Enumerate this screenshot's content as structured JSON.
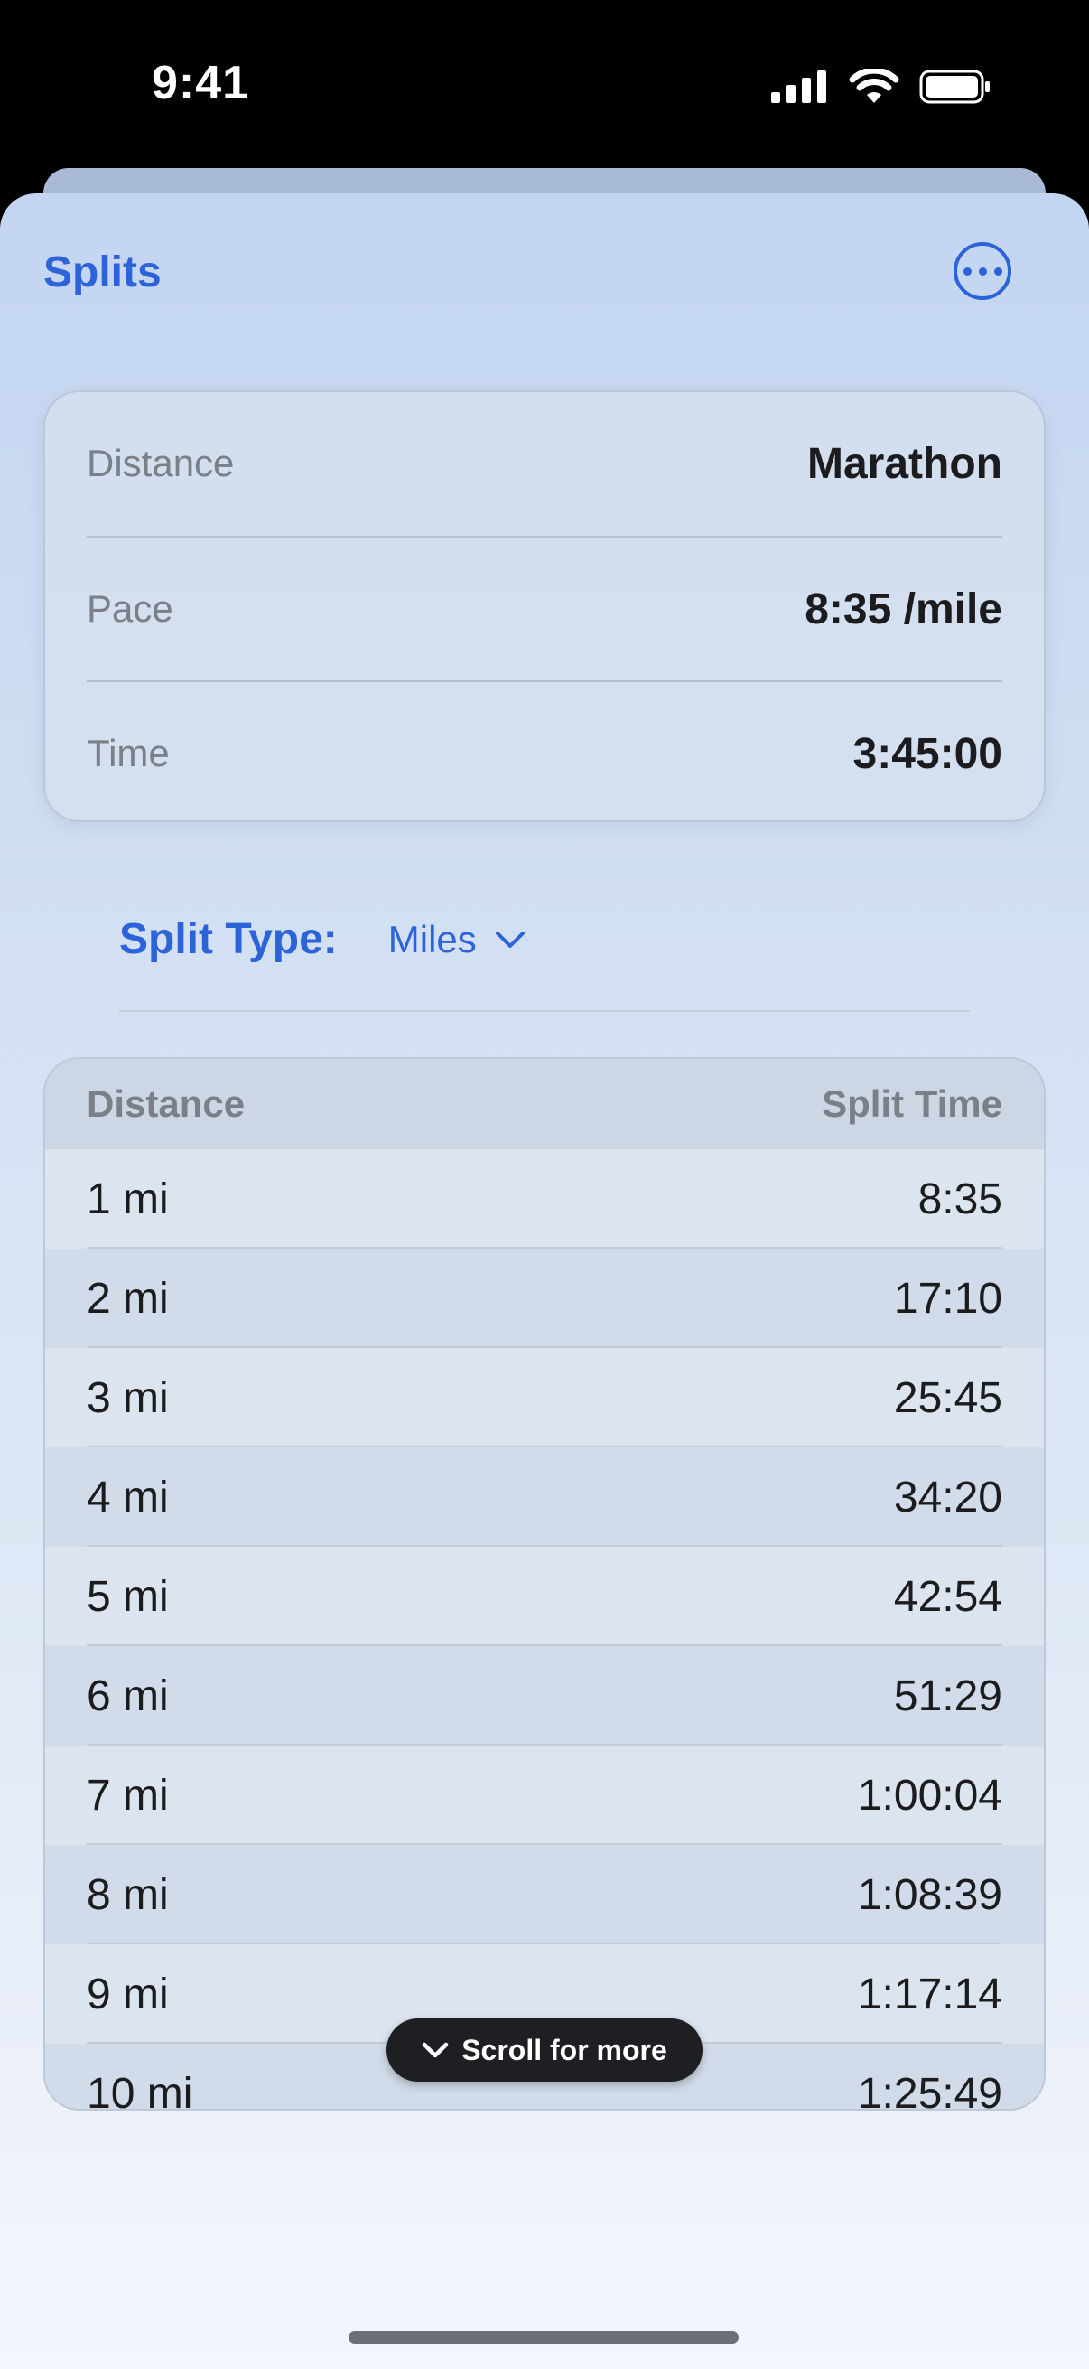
{
  "status": {
    "time": "9:41"
  },
  "header": {
    "title": "Splits",
    "more_icon": "ellipsis-circle-icon"
  },
  "summary": [
    {
      "label": "Distance",
      "value": "Marathon"
    },
    {
      "label": "Pace",
      "value": "8:35 /mile"
    },
    {
      "label": "Time",
      "value": "3:45:00"
    }
  ],
  "split_type": {
    "label": "Split Type:",
    "value": "Miles"
  },
  "table": {
    "headers": {
      "distance": "Distance",
      "split_time": "Split Time"
    },
    "rows": [
      {
        "distance": "1 mi",
        "time": "8:35"
      },
      {
        "distance": "2 mi",
        "time": "17:10"
      },
      {
        "distance": "3 mi",
        "time": "25:45"
      },
      {
        "distance": "4 mi",
        "time": "34:20"
      },
      {
        "distance": "5 mi",
        "time": "42:54"
      },
      {
        "distance": "6 mi",
        "time": "51:29"
      },
      {
        "distance": "7 mi",
        "time": "1:00:04"
      },
      {
        "distance": "8 mi",
        "time": "1:08:39"
      },
      {
        "distance": "9 mi",
        "time": "1:17:14"
      },
      {
        "distance": "10 mi",
        "time": "1:25:49"
      }
    ]
  },
  "scroll_hint": {
    "label": "Scroll for more"
  },
  "colors": {
    "accent": "#2d63d8",
    "pill": "#1d1f22"
  }
}
